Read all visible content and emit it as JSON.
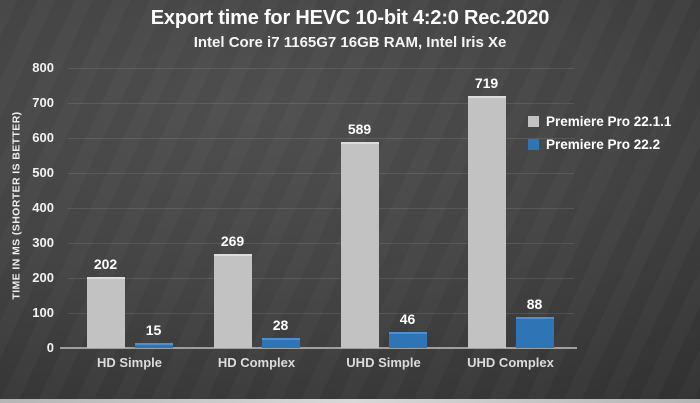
{
  "chart_data": {
    "type": "bar",
    "title": "Export time for HEVC 10-bit 4:2:0 Rec.2020",
    "subtitle": "Intel Core i7 1165G7 16GB RAM, Intel Iris Xe",
    "ylabel": "TIME IN MS (SHORTER IS BETTER)",
    "categories": [
      "HD Simple",
      "HD Complex",
      "UHD Simple",
      "UHD Complex"
    ],
    "series": [
      {
        "name": "Premiere Pro 22.1.1",
        "color": "#c2c2c2",
        "values": [
          202,
          269,
          589,
          719
        ]
      },
      {
        "name": "Premiere Pro 22.2",
        "color": "#2e75b6",
        "values": [
          15,
          28,
          46,
          88
        ]
      }
    ],
    "ylim": [
      0,
      800
    ],
    "ytick_step": 100,
    "grid": true,
    "legend_position": "right",
    "colors": {
      "background_mid": "#4e4e4e",
      "background_dark": "#272727",
      "axis_line": "#9f9f9f",
      "text": "#ffffff"
    }
  }
}
